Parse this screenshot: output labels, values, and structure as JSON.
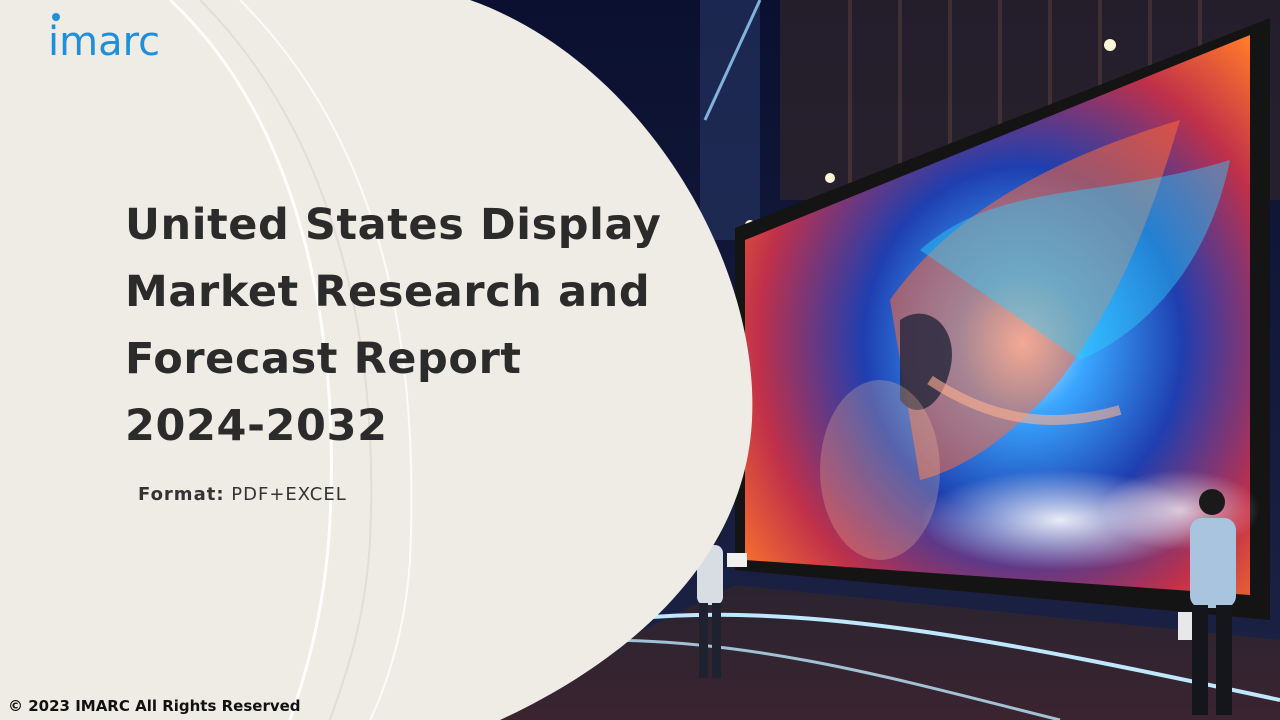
{
  "brand": {
    "logo_text": "imarc"
  },
  "report": {
    "title": "United States Display Market Research and Forecast Report 2024-2032",
    "format_label": "Format:",
    "format_value": "PDF+EXCEL"
  },
  "footer": {
    "copyright": "© 2023 IMARC All Rights Reserved"
  },
  "colors": {
    "brand_blue": "#1e8fd8",
    "panel_cream": "#efece6",
    "title_text": "#2b2b2b"
  }
}
